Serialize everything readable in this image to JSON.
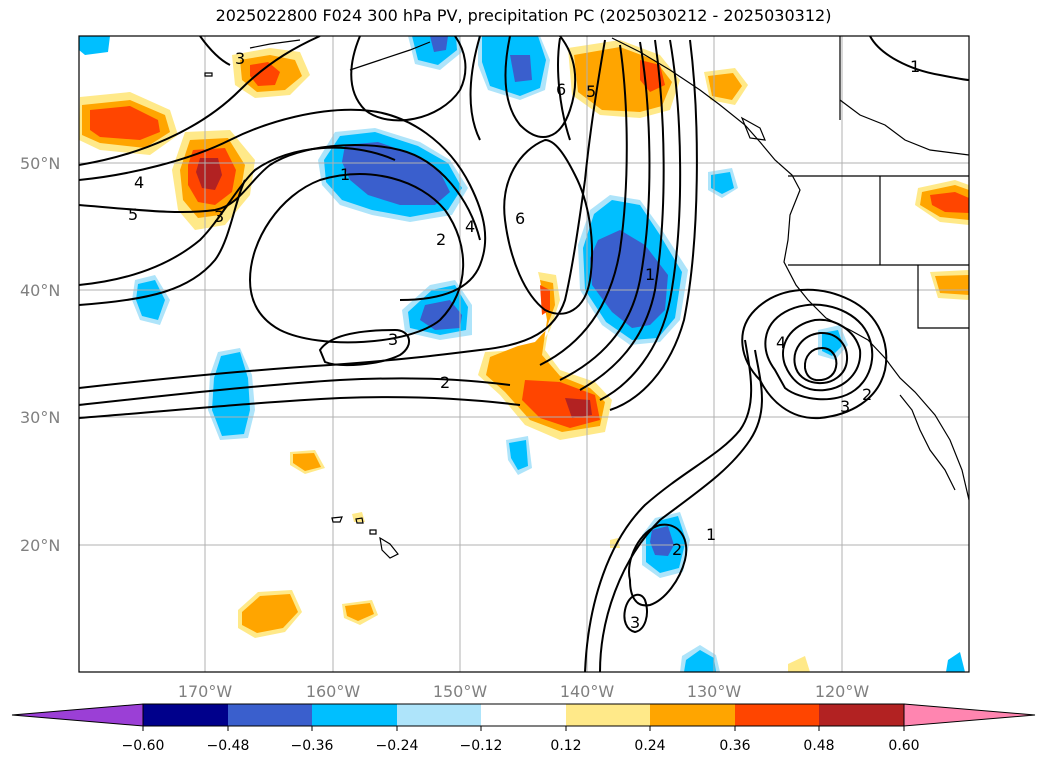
{
  "title": "2025022800 F024 300 hPa PV, precipitation PC (2025030212 - 2025030312)",
  "map": {
    "lon_range": [
      -180,
      -110
    ],
    "lat_range": [
      10,
      60
    ],
    "lat_ticks": [
      {
        "value": 50,
        "label": "50°N"
      },
      {
        "value": 40,
        "label": "40°N"
      },
      {
        "value": 30,
        "label": "30°N"
      },
      {
        "value": 20,
        "label": "20°N"
      }
    ],
    "lon_ticks": [
      {
        "value": -170,
        "label": "170°W"
      },
      {
        "value": -160,
        "label": "160°W"
      },
      {
        "value": -150,
        "label": "150°W"
      },
      {
        "value": -140,
        "label": "140°W"
      },
      {
        "value": -130,
        "label": "130°W"
      },
      {
        "value": -120,
        "label": "120°W"
      }
    ],
    "gridlines": true,
    "pv_contour_labels": [
      "1",
      "2",
      "3",
      "4",
      "5",
      "6"
    ]
  },
  "colorbar": {
    "ticks": [
      "−0.60",
      "−0.48",
      "−0.36",
      "−0.24",
      "−0.12",
      "0.12",
      "0.24",
      "0.36",
      "0.48",
      "0.60"
    ],
    "colors": [
      "#9b3fd6",
      "#00008b",
      "#3a5fcd",
      "#00bfff",
      "#aee4fa",
      "#ffffff",
      "#ffe989",
      "#ffa500",
      "#ff4500",
      "#b22222",
      "#ff85b0"
    ],
    "extend": "both"
  }
}
